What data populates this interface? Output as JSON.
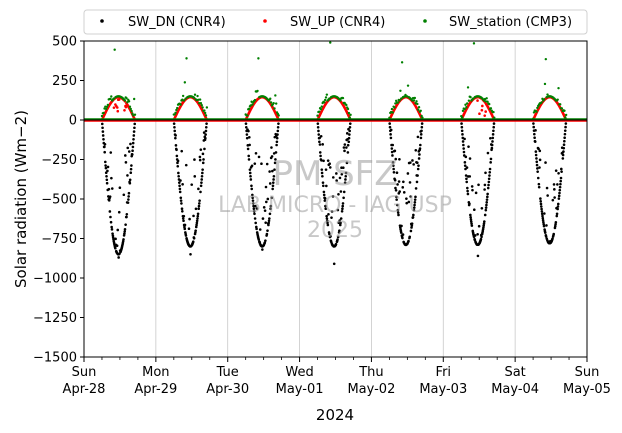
{
  "chart_data": {
    "type": "scatter",
    "title": "",
    "xlabel": "2024",
    "ylabel": "Solar radiation (Wm−2)",
    "ylim": [
      -1500,
      500
    ],
    "yticks": [
      500,
      250,
      0,
      -250,
      -500,
      -750,
      -1000,
      -1250,
      -1500
    ],
    "ytick_labels": [
      "500",
      "250",
      "0",
      "−250",
      "−500",
      "−750",
      "−1000",
      "−1250",
      "−1500"
    ],
    "xlim": [
      "2024-04-28",
      "2024-05-05"
    ],
    "xticks": [
      {
        "date": "2024-04-28",
        "weekday": "Sun",
        "label": "Apr-28"
      },
      {
        "date": "2024-04-29",
        "weekday": "Mon",
        "label": "Apr-29"
      },
      {
        "date": "2024-04-30",
        "weekday": "Tue",
        "label": "Apr-30"
      },
      {
        "date": "2024-05-01",
        "weekday": "Wed",
        "label": "May-01"
      },
      {
        "date": "2024-05-02",
        "weekday": "Thu",
        "label": "May-02"
      },
      {
        "date": "2024-05-03",
        "weekday": "Fri",
        "label": "May-03"
      },
      {
        "date": "2024-05-04",
        "weekday": "Sat",
        "label": "May-04"
      },
      {
        "date": "2024-05-05",
        "weekday": "Sun",
        "label": "May-05"
      }
    ],
    "grid": "vertical major",
    "legend_position": "top",
    "watermark": [
      "PM SFZ",
      "LAB MICRO - IAG USP",
      "2025"
    ],
    "series": [
      {
        "name": "SW_DN (CNR4)",
        "color": "#000000",
        "daily_midday_value": [
          -850,
          -800,
          -800,
          -800,
          -790,
          -790,
          -780
        ],
        "daily_min": [
          -870,
          -850,
          -820,
          -910,
          -790,
          -860,
          -780
        ]
      },
      {
        "name": "SW_UP (CNR4)",
        "color": "#ff0000",
        "daily_midday_value": [
          145,
          145,
          145,
          145,
          145,
          145,
          145
        ]
      },
      {
        "name": "SW_station (CMP3)",
        "color": "#008000",
        "daily_midday_value": [
          150,
          150,
          150,
          150,
          150,
          150,
          150
        ],
        "daily_max": [
          445,
          390,
          390,
          490,
          365,
          485,
          385
        ]
      }
    ]
  }
}
